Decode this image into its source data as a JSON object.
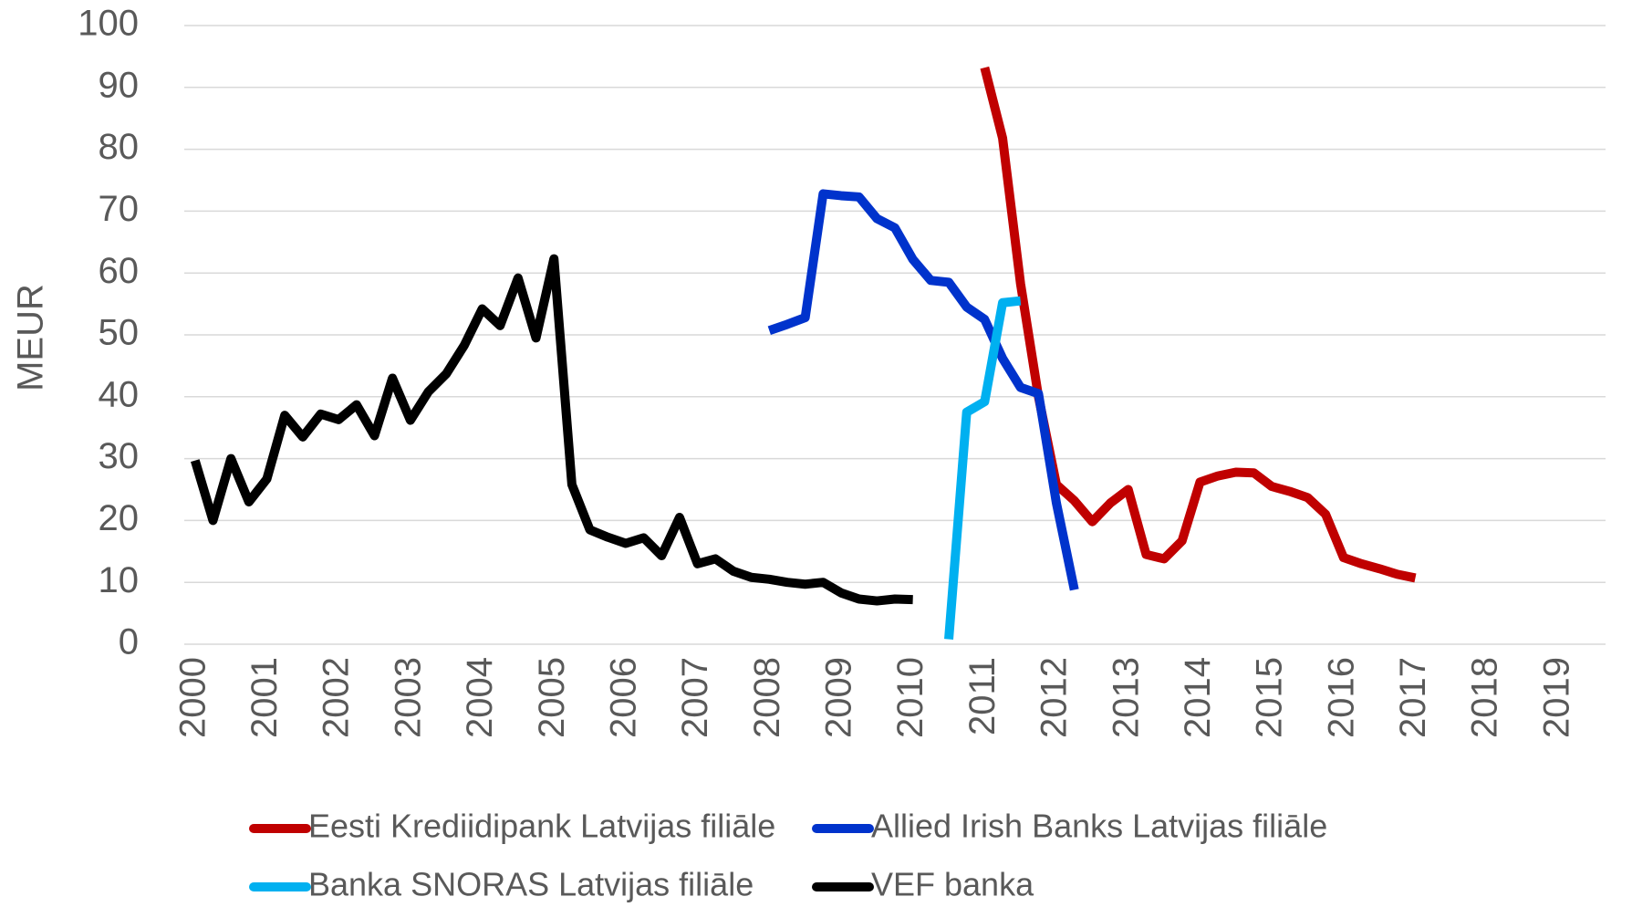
{
  "chart_data": {
    "type": "line",
    "y_label": "MEUR",
    "xlim": [
      1999.85,
      2019.65
    ],
    "xticks": [
      2000,
      2001,
      2002,
      2003,
      2004,
      2005,
      2006,
      2007,
      2008,
      2009,
      2010,
      2011,
      2012,
      2013,
      2014,
      2015,
      2016,
      2017,
      2018,
      2019
    ],
    "ylim": [
      0,
      100
    ],
    "yticks": [
      0,
      10,
      20,
      30,
      40,
      50,
      60,
      70,
      80,
      90,
      100
    ],
    "grid": true,
    "legend": "bottom",
    "series": [
      {
        "name": "Eesti Krediidipank Latvijas filiāle",
        "color": "#c00000",
        "x": [
          2011,
          2011.25,
          2011.5,
          2011.75,
          2012,
          2012.25,
          2012.5,
          2012.75,
          2013,
          2013.25,
          2013.5,
          2013.75,
          2014,
          2014.25,
          2014.5,
          2014.75,
          2015,
          2015.25,
          2015.5,
          2015.75,
          2016,
          2016.25,
          2016.5,
          2016.75,
          2017
        ],
        "values": [
          93.2,
          81.8,
          58.3,
          40,
          25.8,
          23.2,
          19.8,
          22.8,
          25,
          14.5,
          13.8,
          16.7,
          26.2,
          27.2,
          27.8,
          27.7,
          25.5,
          24.7,
          23.7,
          21,
          14,
          13,
          12.2,
          11.3,
          10.7
        ]
      },
      {
        "name": "Allied Irish Banks Latvijas filiāle",
        "color": "#0033cc",
        "x": [
          2008,
          2008.25,
          2008.5,
          2008.75,
          2009,
          2009.25,
          2009.5,
          2009.75,
          2010,
          2010.25,
          2010.5,
          2010.75,
          2011,
          2011.25,
          2011.5,
          2011.75,
          2012,
          2012.25
        ],
        "values": [
          50.7,
          51.7,
          52.8,
          72.8,
          72.5,
          72.3,
          68.8,
          67.3,
          62.2,
          58.8,
          58.5,
          54.5,
          52.5,
          46.2,
          41.5,
          40.5,
          22.8,
          8.8
        ]
      },
      {
        "name": "Banka SNORAS Latvijas filiāle",
        "color": "#00b0f0",
        "x": [
          2010.5,
          2010.75,
          2011,
          2011.25,
          2011.5
        ],
        "values": [
          0.8,
          37.5,
          39.2,
          55.2,
          55.5
        ]
      },
      {
        "name": "VEF banka",
        "color": "#000000",
        "x": [
          2000,
          2000.25,
          2000.5,
          2000.75,
          2001,
          2001.25,
          2001.5,
          2001.75,
          2002,
          2002.25,
          2002.5,
          2002.75,
          2003,
          2003.25,
          2003.5,
          2003.75,
          2004,
          2004.25,
          2004.5,
          2004.75,
          2005,
          2005.25,
          2005.5,
          2005.75,
          2006,
          2006.25,
          2006.5,
          2006.75,
          2007,
          2007.25,
          2007.5,
          2007.75,
          2008,
          2008.25,
          2008.5,
          2008.75,
          2009,
          2009.25,
          2009.5,
          2009.75,
          2010
        ],
        "values": [
          29.7,
          20,
          30,
          23,
          26.7,
          37,
          33.5,
          37.2,
          36.3,
          38.7,
          33.7,
          43,
          36.2,
          40.8,
          43.7,
          48.3,
          54.2,
          51.5,
          59.2,
          49.5,
          62.3,
          25.8,
          18.5,
          17.3,
          16.3,
          17.2,
          14.3,
          20.5,
          13,
          13.8,
          11.8,
          10.8,
          10.5,
          10,
          9.7,
          10,
          8.3,
          7.3,
          7,
          7.3,
          7.2
        ]
      }
    ]
  }
}
